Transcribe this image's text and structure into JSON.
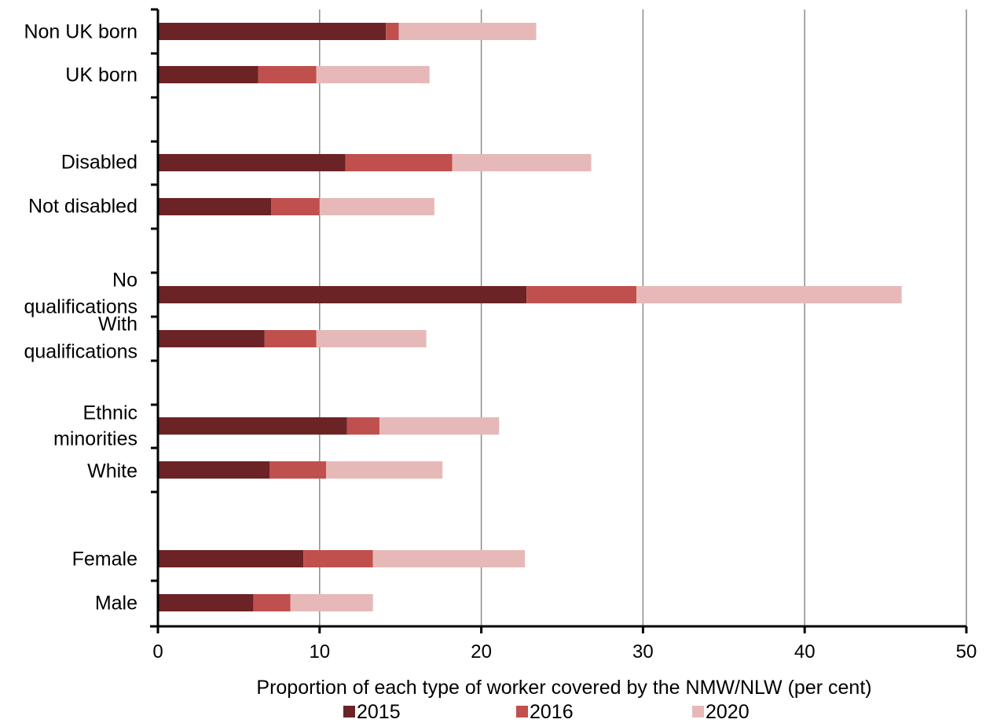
{
  "chart_data": {
    "type": "bar",
    "orientation": "horizontal",
    "stacked": true,
    "categories": [
      [
        "Non UK born"
      ],
      [
        "UK born"
      ],
      [
        "Disabled"
      ],
      [
        "Not disabled"
      ],
      [
        "No",
        "qualifications"
      ],
      [
        "With",
        "qualifications"
      ],
      [
        "Ethnic",
        "minorities"
      ],
      [
        "White"
      ],
      [
        "Female"
      ],
      [
        "Male"
      ]
    ],
    "series": [
      {
        "name": "2015",
        "color": "#6b2325",
        "values": [
          14.1,
          6.2,
          11.6,
          7.0,
          22.8,
          6.6,
          11.7,
          6.9,
          9.0,
          5.9
        ]
      },
      {
        "name": "2016",
        "color": "#c0504d",
        "values": [
          0.8,
          3.6,
          6.6,
          3.0,
          6.8,
          3.2,
          2.0,
          3.5,
          4.3,
          2.3
        ]
      },
      {
        "name": "2020",
        "color": "#e6b9b8",
        "values": [
          8.5,
          7.0,
          8.6,
          7.1,
          16.4,
          6.8,
          7.4,
          7.2,
          9.4,
          5.1
        ]
      }
    ],
    "xlabel": "Proportion of each type of worker covered by the NMW/NLW (per cent)",
    "xlim": [
      0,
      50
    ],
    "xticks": [
      0,
      10,
      20,
      30,
      40,
      50
    ],
    "grid": "vertical",
    "legend": "bottom"
  }
}
